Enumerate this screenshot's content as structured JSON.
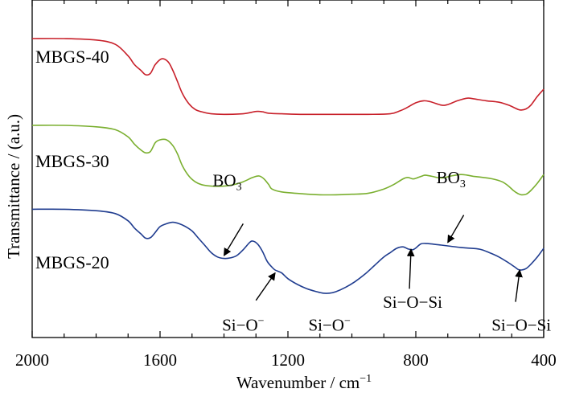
{
  "chart_data": {
    "type": "line",
    "title": "",
    "xlabel": "Wavenumber / cm",
    "xlabel_sup": "−1",
    "ylabel": "Transmittance / (a.u.)",
    "xlim": [
      2000,
      400
    ],
    "x_reversed": true,
    "x_ticks": [
      "2000",
      "1600",
      "1200",
      "800",
      "400"
    ],
    "ylim": [
      0,
      1
    ],
    "y_ticks_labeled": false,
    "grid": false,
    "series": [
      {
        "name": "MBGS-40",
        "color": "#c8202a",
        "x": [
          2000,
          1900,
          1800,
          1740,
          1700,
          1680,
          1660,
          1645,
          1630,
          1615,
          1595,
          1575,
          1560,
          1545,
          1530,
          1510,
          1490,
          1470,
          1440,
          1400,
          1340,
          1300,
          1280,
          1260,
          1220,
          1150,
          1050,
          950,
          880,
          850,
          830,
          800,
          775,
          755,
          720,
          700,
          670,
          640,
          620,
          580,
          540,
          510,
          490,
          480,
          470,
          455,
          440,
          420,
          400
        ],
        "y": [
          0.95,
          0.95,
          0.945,
          0.93,
          0.89,
          0.86,
          0.84,
          0.825,
          0.83,
          0.86,
          0.88,
          0.87,
          0.84,
          0.8,
          0.76,
          0.725,
          0.705,
          0.697,
          0.69,
          0.688,
          0.69,
          0.698,
          0.697,
          0.692,
          0.69,
          0.688,
          0.688,
          0.688,
          0.69,
          0.7,
          0.71,
          0.728,
          0.735,
          0.732,
          0.72,
          0.722,
          0.735,
          0.744,
          0.742,
          0.735,
          0.73,
          0.72,
          0.71,
          0.705,
          0.703,
          0.707,
          0.72,
          0.75,
          0.775
        ]
      },
      {
        "name": "MBGS-30",
        "color": "#7aaf2f",
        "x": [
          2000,
          1900,
          1800,
          1740,
          1700,
          1680,
          1660,
          1645,
          1630,
          1615,
          1600,
          1580,
          1560,
          1545,
          1530,
          1510,
          1490,
          1470,
          1440,
          1400,
          1370,
          1340,
          1310,
          1290,
          1275,
          1260,
          1250,
          1220,
          1150,
          1100,
          1050,
          1000,
          950,
          900,
          870,
          840,
          825,
          810,
          800,
          780,
          770,
          750,
          720,
          690,
          660,
          640,
          620,
          590,
          560,
          530,
          510,
          495,
          480,
          470,
          455,
          440,
          420,
          400
        ],
        "y": [
          0.65,
          0.65,
          0.645,
          0.635,
          0.61,
          0.585,
          0.565,
          0.555,
          0.56,
          0.59,
          0.6,
          0.6,
          0.58,
          0.55,
          0.51,
          0.475,
          0.455,
          0.445,
          0.44,
          0.44,
          0.445,
          0.455,
          0.47,
          0.475,
          0.465,
          0.445,
          0.43,
          0.42,
          0.413,
          0.41,
          0.41,
          0.412,
          0.415,
          0.43,
          0.445,
          0.465,
          0.47,
          0.465,
          0.467,
          0.475,
          0.478,
          0.474,
          0.468,
          0.475,
          0.48,
          0.478,
          0.474,
          0.47,
          0.465,
          0.455,
          0.44,
          0.425,
          0.414,
          0.41,
          0.412,
          0.425,
          0.45,
          0.48
        ]
      },
      {
        "name": "MBGS-20",
        "color": "#1f3c8f",
        "x": [
          2000,
          1900,
          1800,
          1740,
          1700,
          1680,
          1660,
          1645,
          1630,
          1615,
          1600,
          1580,
          1560,
          1540,
          1520,
          1500,
          1480,
          1460,
          1440,
          1420,
          1400,
          1380,
          1360,
          1340,
          1320,
          1310,
          1295,
          1280,
          1265,
          1250,
          1240,
          1220,
          1200,
          1170,
          1140,
          1110,
          1090,
          1070,
          1050,
          1020,
          990,
          960,
          930,
          900,
          880,
          860,
          840,
          825,
          810,
          800,
          785,
          770,
          750,
          720,
          690,
          660,
          640,
          600,
          570,
          540,
          510,
          490,
          480,
          470,
          455,
          440,
          420,
          400
        ],
        "y": [
          0.36,
          0.36,
          0.355,
          0.345,
          0.32,
          0.295,
          0.275,
          0.26,
          0.262,
          0.28,
          0.3,
          0.31,
          0.315,
          0.31,
          0.3,
          0.285,
          0.26,
          0.235,
          0.21,
          0.195,
          0.19,
          0.192,
          0.2,
          0.22,
          0.245,
          0.25,
          0.24,
          0.215,
          0.18,
          0.16,
          0.15,
          0.14,
          0.12,
          0.1,
          0.085,
          0.075,
          0.07,
          0.07,
          0.075,
          0.09,
          0.11,
          0.135,
          0.165,
          0.195,
          0.21,
          0.225,
          0.23,
          0.223,
          0.22,
          0.226,
          0.24,
          0.242,
          0.24,
          0.236,
          0.232,
          0.228,
          0.226,
          0.222,
          0.21,
          0.195,
          0.175,
          0.16,
          0.152,
          0.15,
          0.155,
          0.17,
          0.195,
          0.225
        ]
      }
    ],
    "annotations": [
      {
        "id": "bo3-left",
        "text": "BO",
        "sub": "3",
        "text_x": 1390,
        "text_y": 0.44,
        "tip_x": 1400,
        "tip_y": 0.2,
        "tail_x": 1340,
        "tail_y": 0.31
      },
      {
        "id": "bo3-right",
        "text": "BO",
        "sub": "3",
        "text_x": 690,
        "text_y": 0.45,
        "tip_x": 700,
        "tip_y": 0.245,
        "tail_x": 650,
        "tail_y": 0.34
      },
      {
        "id": "si-o-left",
        "text": "Si−O",
        "sup": "−",
        "text_x": 1340,
        "text_y": -0.06,
        "tip_x": 1240,
        "tip_y": 0.14,
        "tail_x": 1300,
        "tail_y": 0.045
      },
      {
        "id": "si-o-center",
        "text": "Si−O",
        "sup": "−",
        "text_x": 1070,
        "text_y": -0.06,
        "tip_x": null,
        "tip_y": null,
        "tail_x": null,
        "tail_y": null
      },
      {
        "id": "si-o-si-center",
        "text": "Si−O−Si",
        "text_x": 810,
        "text_y": 0.02,
        "tip_x": 815,
        "tip_y": 0.222,
        "tail_x": 820,
        "tail_y": 0.085
      },
      {
        "id": "si-o-si-right",
        "text": "Si−O−Si",
        "text_x": 470,
        "text_y": -0.06,
        "tip_x": 475,
        "tip_y": 0.15,
        "tail_x": 488,
        "tail_y": 0.04
      }
    ]
  }
}
